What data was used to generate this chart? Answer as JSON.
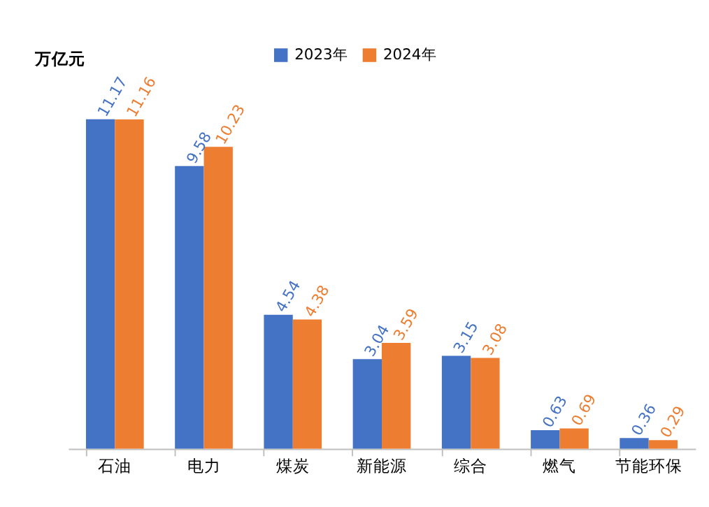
{
  "chart_data": {
    "type": "bar",
    "ylabel": "万亿元",
    "categories": [
      "石油",
      "电力",
      "煤炭",
      "新能源",
      "综合",
      "燃气",
      "节能环保"
    ],
    "series": [
      {
        "name": "2023年",
        "color": "#4472c4",
        "values": [
          11.17,
          9.58,
          4.54,
          3.04,
          3.15,
          0.63,
          0.36
        ]
      },
      {
        "name": "2024年",
        "color": "#ed7d31",
        "values": [
          11.16,
          10.23,
          4.38,
          3.59,
          3.08,
          0.69,
          0.29
        ]
      }
    ],
    "data_labels": true,
    "grid": false,
    "legend": "top"
  }
}
